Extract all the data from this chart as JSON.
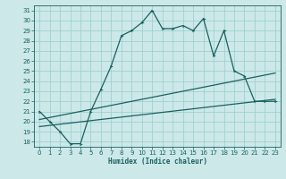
{
  "xlabel": "Humidex (Indice chaleur)",
  "bg_color": "#cce8e8",
  "grid_color": "#99cccc",
  "line_color": "#1a6060",
  "xlim": [
    -0.5,
    23.5
  ],
  "ylim": [
    17.5,
    31.5
  ],
  "xticks": [
    0,
    1,
    2,
    3,
    4,
    5,
    6,
    7,
    8,
    9,
    10,
    11,
    12,
    13,
    14,
    15,
    16,
    17,
    18,
    19,
    20,
    21,
    22,
    23
  ],
  "yticks": [
    18,
    19,
    20,
    21,
    22,
    23,
    24,
    25,
    26,
    27,
    28,
    29,
    30,
    31
  ],
  "curve1_x": [
    0,
    1,
    2,
    3,
    4,
    5,
    6,
    7,
    8,
    9,
    10,
    11,
    12,
    13,
    14,
    15,
    16,
    17,
    18,
    19,
    20,
    21,
    22,
    23
  ],
  "curve1_y": [
    21.0,
    20.0,
    19.0,
    17.8,
    17.8,
    21.0,
    23.2,
    25.5,
    28.5,
    29.0,
    29.8,
    31.0,
    29.2,
    29.2,
    29.5,
    29.0,
    30.2,
    26.5,
    29.0,
    25.0,
    24.5,
    22.0,
    22.0,
    22.0
  ],
  "curve2_x": [
    0,
    23
  ],
  "curve2_y": [
    19.5,
    22.2
  ],
  "curve3_x": [
    0,
    23
  ],
  "curve3_y": [
    20.2,
    24.8
  ]
}
